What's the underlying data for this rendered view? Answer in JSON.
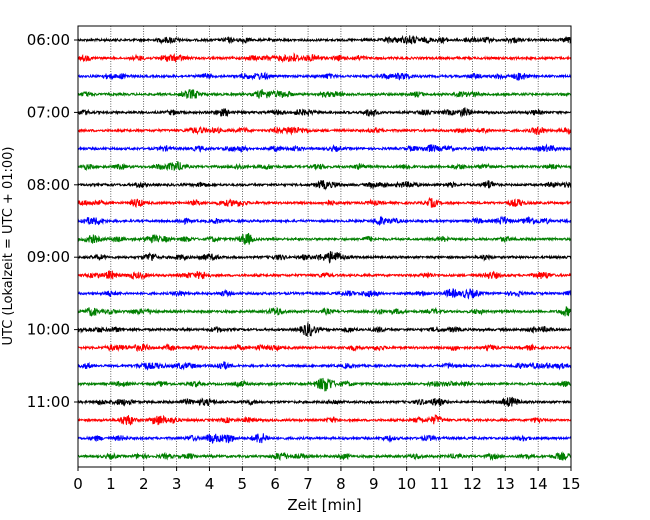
{
  "chart_data": {
    "type": "line",
    "title": "",
    "xlabel": "Zeit  [min]",
    "ylabel": "UTC (Lokalzeit = UTC + 01:00)",
    "xlim": [
      0,
      15
    ],
    "x_ticks": [
      "0",
      "1",
      "2",
      "3",
      "4",
      "5",
      "6",
      "7",
      "8",
      "9",
      "10",
      "11",
      "12",
      "13",
      "14",
      "15"
    ],
    "y_ticks": [
      "06:00",
      "07:00",
      "08:00",
      "09:00",
      "10:00",
      "11:00"
    ],
    "grid": "vertical dotted lines at each minute",
    "legend": "none",
    "trace_start": "06:00",
    "trace_interval_min": 15,
    "trace_count": 24,
    "trace_colors": [
      "#000000",
      "#ff0000",
      "#0000ff",
      "#007f00"
    ],
    "series": [
      {
        "start": "06:00",
        "color": "#000000"
      },
      {
        "start": "06:15",
        "color": "#ff0000"
      },
      {
        "start": "06:30",
        "color": "#0000ff"
      },
      {
        "start": "06:45",
        "color": "#007f00"
      },
      {
        "start": "07:00",
        "color": "#000000"
      },
      {
        "start": "07:15",
        "color": "#ff0000"
      },
      {
        "start": "07:30",
        "color": "#0000ff"
      },
      {
        "start": "07:45",
        "color": "#007f00"
      },
      {
        "start": "08:00",
        "color": "#000000"
      },
      {
        "start": "08:15",
        "color": "#ff0000"
      },
      {
        "start": "08:30",
        "color": "#0000ff"
      },
      {
        "start": "08:45",
        "color": "#007f00"
      },
      {
        "start": "09:00",
        "color": "#000000"
      },
      {
        "start": "09:15",
        "color": "#ff0000"
      },
      {
        "start": "09:30",
        "color": "#0000ff"
      },
      {
        "start": "09:45",
        "color": "#007f00"
      },
      {
        "start": "10:00",
        "color": "#000000"
      },
      {
        "start": "10:15",
        "color": "#ff0000"
      },
      {
        "start": "10:30",
        "color": "#0000ff"
      },
      {
        "start": "10:45",
        "color": "#007f00"
      },
      {
        "start": "11:00",
        "color": "#000000"
      },
      {
        "start": "11:15",
        "color": "#ff0000"
      },
      {
        "start": "11:30",
        "color": "#0000ff"
      },
      {
        "start": "11:45",
        "color": "#007f00"
      }
    ]
  }
}
